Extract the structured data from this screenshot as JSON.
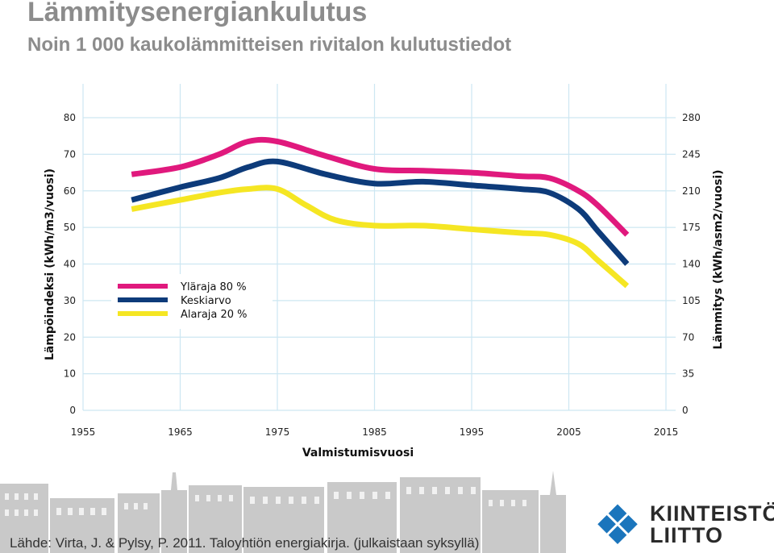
{
  "header": {
    "title": "Lämmitysenergiankulutus",
    "subtitle": "Noin 1 000 kaukolämmitteisen rivitalon kulutustiedot"
  },
  "footer": {
    "source": "Lähde: Virta, J. & Pylsy, P. 2011. Taloyhtiön energiakirja. (julkaistaan syksyllä)",
    "logo_line1": "KIINTEISTÖ",
    "logo_line2": "LIITTO"
  },
  "colors": {
    "upper": "#e0197d",
    "mean": "#0d3b7a",
    "lower": "#f5e623",
    "grid": "#cde7f2"
  },
  "chart_data": {
    "type": "line",
    "title": "Lämmitysenergiankulutus",
    "xlabel": "Valmistumisvuosi",
    "ylabel": "Lämpöindeksi (kWh/m3/vuosi)",
    "y2label": "Lämmitys (kWh/asm2/vuosi)",
    "xlim": [
      1955,
      2015
    ],
    "ylim": [
      0,
      80
    ],
    "y2lim": [
      0,
      280
    ],
    "x_ticks": [
      "1955",
      "1965",
      "1975",
      "1985",
      "1995",
      "2005",
      "2015"
    ],
    "y_ticks": [
      "0",
      "10",
      "20",
      "30",
      "40",
      "50",
      "60",
      "70",
      "80"
    ],
    "y2_ticks": [
      "0",
      "35",
      "70",
      "105",
      "140",
      "175",
      "210",
      "245",
      "280"
    ],
    "legend_position": "left-middle",
    "series": [
      {
        "name": "Yläraja 80 %",
        "key": "upper",
        "x": [
          1960,
          1965,
          1969,
          1972,
          1975,
          1980,
          1985,
          1990,
          1995,
          2000,
          2003,
          2006,
          2008,
          2011
        ],
        "values": [
          64.5,
          66.5,
          70,
          73.5,
          73.5,
          69.5,
          66,
          65.5,
          65,
          64,
          63.5,
          60,
          56,
          48
        ]
      },
      {
        "name": "Keskiarvo",
        "key": "mean",
        "x": [
          1960,
          1965,
          1969,
          1972,
          1975,
          1980,
          1985,
          1990,
          1995,
          2000,
          2003,
          2006,
          2008,
          2011
        ],
        "values": [
          57.5,
          61,
          63.5,
          66.5,
          68,
          64.5,
          62,
          62.5,
          61.5,
          60.5,
          59.5,
          55,
          49,
          40
        ]
      },
      {
        "name": "Alaraja 20 %",
        "key": "lower",
        "x": [
          1960,
          1965,
          1969,
          1972,
          1975,
          1978,
          1981,
          1985,
          1990,
          1995,
          2000,
          2003,
          2006,
          2008,
          2011
        ],
        "values": [
          55,
          57.5,
          59.5,
          60.5,
          60.5,
          56,
          52,
          50.5,
          50.5,
          49.5,
          48.5,
          48,
          45.5,
          41,
          34
        ]
      }
    ]
  }
}
